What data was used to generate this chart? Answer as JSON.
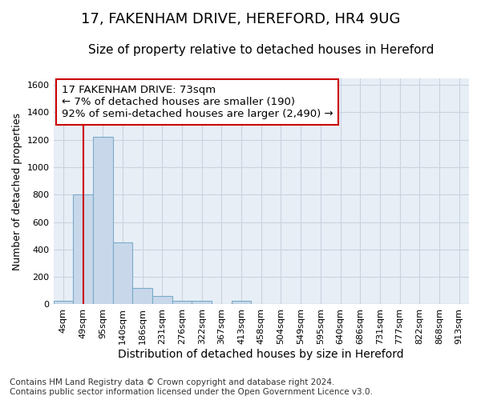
{
  "title": "17, FAKENHAM DRIVE, HEREFORD, HR4 9UG",
  "subtitle": "Size of property relative to detached houses in Hereford",
  "xlabel": "Distribution of detached houses by size in Hereford",
  "ylabel": "Number of detached properties",
  "footnote": "Contains HM Land Registry data © Crown copyright and database right 2024.\nContains public sector information licensed under the Open Government Licence v3.0.",
  "bin_labels": [
    "4sqm",
    "49sqm",
    "95sqm",
    "140sqm",
    "186sqm",
    "231sqm",
    "276sqm",
    "322sqm",
    "367sqm",
    "413sqm",
    "458sqm",
    "504sqm",
    "549sqm",
    "595sqm",
    "640sqm",
    "686sqm",
    "731sqm",
    "777sqm",
    "822sqm",
    "868sqm",
    "913sqm"
  ],
  "bar_heights": [
    25,
    800,
    1220,
    450,
    120,
    60,
    25,
    25,
    0,
    25,
    0,
    0,
    0,
    0,
    0,
    0,
    0,
    0,
    0,
    0,
    0
  ],
  "bar_color": "#c8d8ea",
  "bar_edge_color": "#7aaac8",
  "bar_edge_width": 0.8,
  "ylim": [
    0,
    1650
  ],
  "yticks": [
    0,
    200,
    400,
    600,
    800,
    1000,
    1200,
    1400,
    1600
  ],
  "red_line_x": 1.0,
  "annotation_text": "17 FAKENHAM DRIVE: 73sqm\n← 7% of detached houses are smaller (190)\n92% of semi-detached houses are larger (2,490) →",
  "annotation_box_color": "#ffffff",
  "annotation_box_edge_color": "#cc0000",
  "grid_color": "#c8d4e0",
  "background_color": "#e8eef6",
  "title_fontsize": 13,
  "subtitle_fontsize": 11,
  "annotation_fontsize": 9.5,
  "tick_fontsize": 8,
  "ylabel_fontsize": 9,
  "xlabel_fontsize": 10,
  "footnote_fontsize": 7.5
}
